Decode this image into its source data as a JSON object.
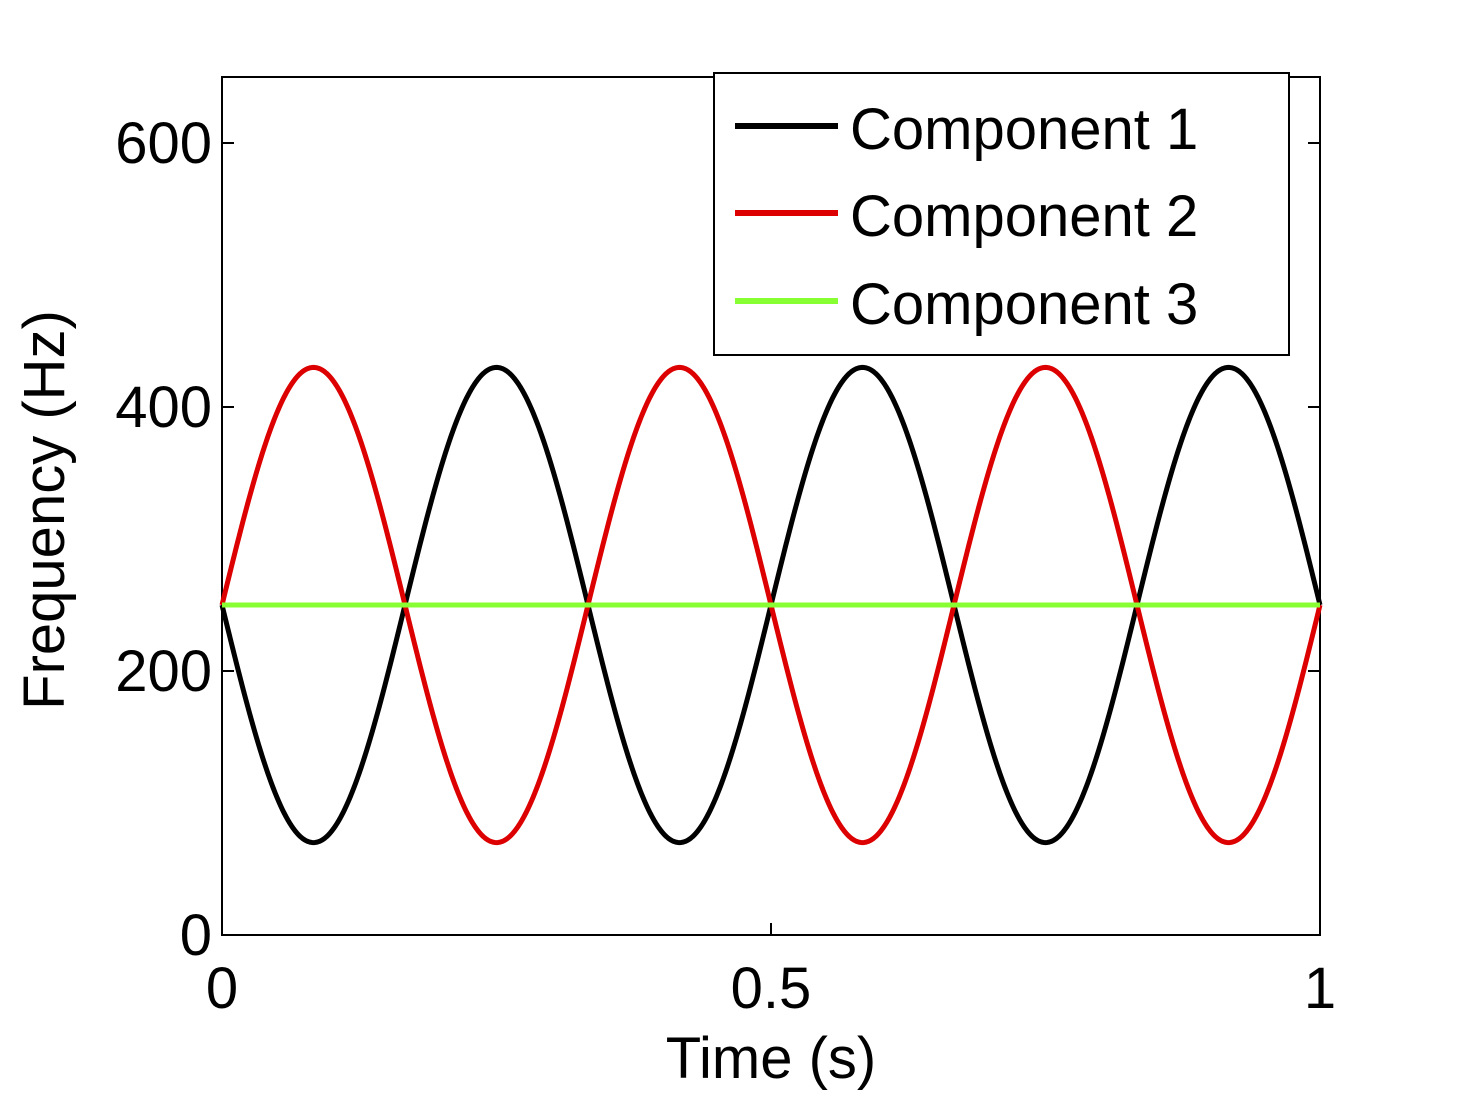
{
  "chart_data": {
    "type": "line",
    "title": "",
    "xlabel": "Time (s)",
    "ylabel": "Frequency (Hz)",
    "xlim": [
      0,
      1
    ],
    "ylim": [
      0,
      650
    ],
    "xticks": [
      0,
      0.5,
      1
    ],
    "xtick_labels": [
      "0",
      "0.5",
      "1"
    ],
    "yticks": [
      0,
      200,
      400,
      600
    ],
    "ytick_labels": [
      "0",
      "200",
      "400",
      "600"
    ],
    "grid": false,
    "legend_position": "top-right",
    "series": [
      {
        "name": "Component 1",
        "color": "#000000",
        "function": "center + amplitude * sin(2*pi*cycles*t + phase)",
        "center": 250,
        "amplitude": 180,
        "cycles": 3,
        "phase": 3.14159,
        "x": [
          0,
          0.0833,
          0.1667,
          0.25,
          0.3333,
          0.4167,
          0.5,
          0.5833,
          0.6667,
          0.75,
          0.8333,
          0.9167,
          1
        ],
        "values": [
          250,
          70,
          250,
          430,
          250,
          70,
          250,
          430,
          250,
          70,
          250,
          430,
          250
        ]
      },
      {
        "name": "Component 2",
        "color": "#dd0000",
        "function": "center + amplitude * sin(2*pi*cycles*t + phase)",
        "center": 250,
        "amplitude": 180,
        "cycles": 3,
        "phase": 0,
        "x": [
          0,
          0.0833,
          0.1667,
          0.25,
          0.3333,
          0.4167,
          0.5,
          0.5833,
          0.6667,
          0.75,
          0.8333,
          0.9167,
          1
        ],
        "values": [
          250,
          430,
          250,
          70,
          250,
          430,
          250,
          70,
          250,
          430,
          250,
          70,
          250
        ]
      },
      {
        "name": "Component 3",
        "color": "#88ff33",
        "function": "constant",
        "center": 250,
        "amplitude": 0,
        "cycles": 0,
        "phase": 0,
        "x": [
          0,
          1
        ],
        "values": [
          250,
          250
        ]
      }
    ]
  }
}
